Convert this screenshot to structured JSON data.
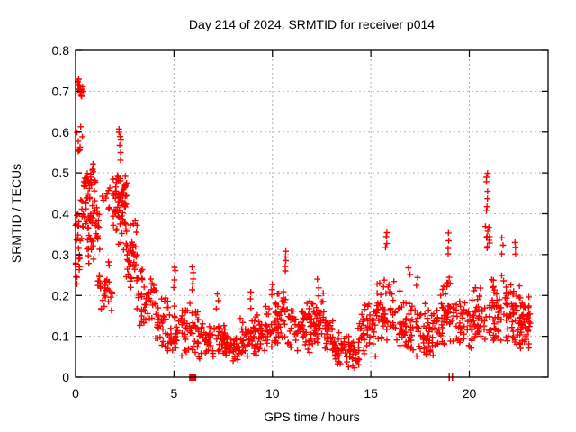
{
  "chart_data": {
    "type": "scatter",
    "title": "Day 214 of 2024, SRMTID for receiver p014",
    "xlabel": "GPS time / hours",
    "ylabel": "SRMTID / TECUs",
    "xlim": [
      0,
      24
    ],
    "ylim": [
      0,
      0.8
    ],
    "xticks": [
      {
        "v": 0,
        "label": "0"
      },
      {
        "v": 5,
        "label": "5"
      },
      {
        "v": 10,
        "label": "10"
      },
      {
        "v": 15,
        "label": "15"
      },
      {
        "v": 20,
        "label": "20"
      }
    ],
    "yticks": [
      {
        "v": 0,
        "label": "0"
      },
      {
        "v": 0.1,
        "label": "0.1"
      },
      {
        "v": 0.2,
        "label": "0.2"
      },
      {
        "v": 0.3,
        "label": "0.3"
      },
      {
        "v": 0.4,
        "label": "0.4"
      },
      {
        "v": 0.5,
        "label": "0.5"
      },
      {
        "v": 0.6,
        "label": "0.6"
      },
      {
        "v": 0.7,
        "label": "0.7"
      },
      {
        "v": 0.8,
        "label": "0.8"
      }
    ],
    "grid": true,
    "legend": "none",
    "marker": "plus",
    "marker_color": "#ff0000",
    "grid_color": "#b3b3b3",
    "border_color": "#000000",
    "seed": 42,
    "bands_format": "[t_start_h, t_end_h, n_points, v_min, v_max, v_mode] — density envelope of the scatter cloud read from the plot",
    "bands": [
      [
        0.0,
        0.25,
        22,
        0.19,
        0.46,
        0.33
      ],
      [
        0.05,
        0.35,
        8,
        0.5,
        0.62,
        0.56
      ],
      [
        0.1,
        0.4,
        14,
        0.64,
        0.735,
        0.705
      ],
      [
        0.25,
        0.7,
        24,
        0.3,
        0.52,
        0.41
      ],
      [
        0.45,
        1.05,
        26,
        0.43,
        0.53,
        0.48
      ],
      [
        0.6,
        1.2,
        40,
        0.26,
        0.44,
        0.36
      ],
      [
        1.1,
        1.9,
        32,
        0.1,
        0.33,
        0.22
      ],
      [
        1.35,
        1.75,
        8,
        0.4,
        0.47,
        0.43
      ],
      [
        1.9,
        2.6,
        65,
        0.3,
        0.53,
        0.42
      ],
      [
        2.55,
        3.15,
        45,
        0.2,
        0.4,
        0.3
      ],
      [
        3.1,
        4.1,
        50,
        0.1,
        0.28,
        0.18
      ],
      [
        4.05,
        4.7,
        32,
        0.07,
        0.23,
        0.13
      ],
      [
        4.65,
        5.5,
        38,
        0.05,
        0.21,
        0.11
      ],
      [
        5.5,
        6.25,
        38,
        0.06,
        0.2,
        0.12
      ],
      [
        6.2,
        7.6,
        68,
        0.04,
        0.16,
        0.095
      ],
      [
        7.55,
        8.4,
        42,
        0.03,
        0.12,
        0.075
      ],
      [
        8.35,
        9.2,
        45,
        0.04,
        0.16,
        0.1
      ],
      [
        9.15,
        10.2,
        55,
        0.06,
        0.19,
        0.11
      ],
      [
        10.15,
        10.9,
        45,
        0.08,
        0.25,
        0.14
      ],
      [
        10.85,
        11.9,
        55,
        0.06,
        0.2,
        0.12
      ],
      [
        11.85,
        12.7,
        50,
        0.08,
        0.23,
        0.14
      ],
      [
        12.65,
        13.1,
        28,
        0.05,
        0.16,
        0.1
      ],
      [
        13.05,
        14.4,
        70,
        0.02,
        0.11,
        0.065
      ],
      [
        14.35,
        15.3,
        48,
        0.05,
        0.21,
        0.11
      ],
      [
        15.25,
        16.2,
        55,
        0.09,
        0.3,
        0.16
      ],
      [
        16.15,
        17.1,
        48,
        0.07,
        0.25,
        0.13
      ],
      [
        17.05,
        18.4,
        60,
        0.05,
        0.21,
        0.11
      ],
      [
        18.35,
        19.3,
        52,
        0.08,
        0.31,
        0.15
      ],
      [
        19.25,
        20.2,
        42,
        0.06,
        0.22,
        0.12
      ],
      [
        20.15,
        20.85,
        38,
        0.08,
        0.26,
        0.14
      ],
      [
        20.8,
        21.05,
        10,
        0.31,
        0.39,
        0.35
      ],
      [
        21.0,
        21.9,
        55,
        0.09,
        0.3,
        0.16
      ],
      [
        21.85,
        22.6,
        52,
        0.08,
        0.29,
        0.15
      ],
      [
        22.55,
        23.1,
        42,
        0.07,
        0.22,
        0.13
      ]
    ],
    "columns_format": "[t_h, [values...]] — distinct vertical spike columns read from the plot",
    "columns": [
      [
        2.25,
        [
          0.535,
          0.55,
          0.565,
          0.578,
          0.59,
          0.6,
          0.608
        ]
      ],
      [
        2.47,
        [
          0.45,
          0.47,
          0.488
        ]
      ],
      [
        5.02,
        [
          0.22,
          0.24,
          0.257,
          0.272
        ]
      ],
      [
        5.95,
        [
          0.21,
          0.225,
          0.243,
          0.258,
          0.27
        ]
      ],
      [
        7.2,
        [
          0.17,
          0.185,
          0.2
        ]
      ],
      [
        8.85,
        [
          0.17,
          0.19,
          0.21
        ]
      ],
      [
        10.0,
        [
          0.2,
          0.215,
          0.23
        ]
      ],
      [
        10.65,
        [
          0.26,
          0.272,
          0.285,
          0.295,
          0.305
        ]
      ],
      [
        12.3,
        [
          0.2,
          0.22,
          0.24
        ]
      ],
      [
        15.8,
        [
          0.315,
          0.33,
          0.345,
          0.355
        ]
      ],
      [
        16.95,
        [
          0.25,
          0.265
        ]
      ],
      [
        17.35,
        [
          0.225,
          0.245
        ]
      ],
      [
        18.95,
        [
          0.3,
          0.318,
          0.335,
          0.35
        ]
      ],
      [
        20.9,
        [
          0.405,
          0.42,
          0.44,
          0.455,
          0.478,
          0.49,
          0.5
        ]
      ],
      [
        21.7,
        [
          0.3,
          0.32,
          0.345
        ]
      ],
      [
        22.3,
        [
          0.298,
          0.315,
          0.33
        ]
      ]
    ],
    "zero_markers": [
      {
        "shape": "filled-square",
        "x": 5.95,
        "y": 0
      },
      {
        "shape": "vertical-bar",
        "x": 18.98,
        "y": 0
      },
      {
        "shape": "vertical-bar",
        "x": 19.14,
        "y": 0
      }
    ]
  }
}
